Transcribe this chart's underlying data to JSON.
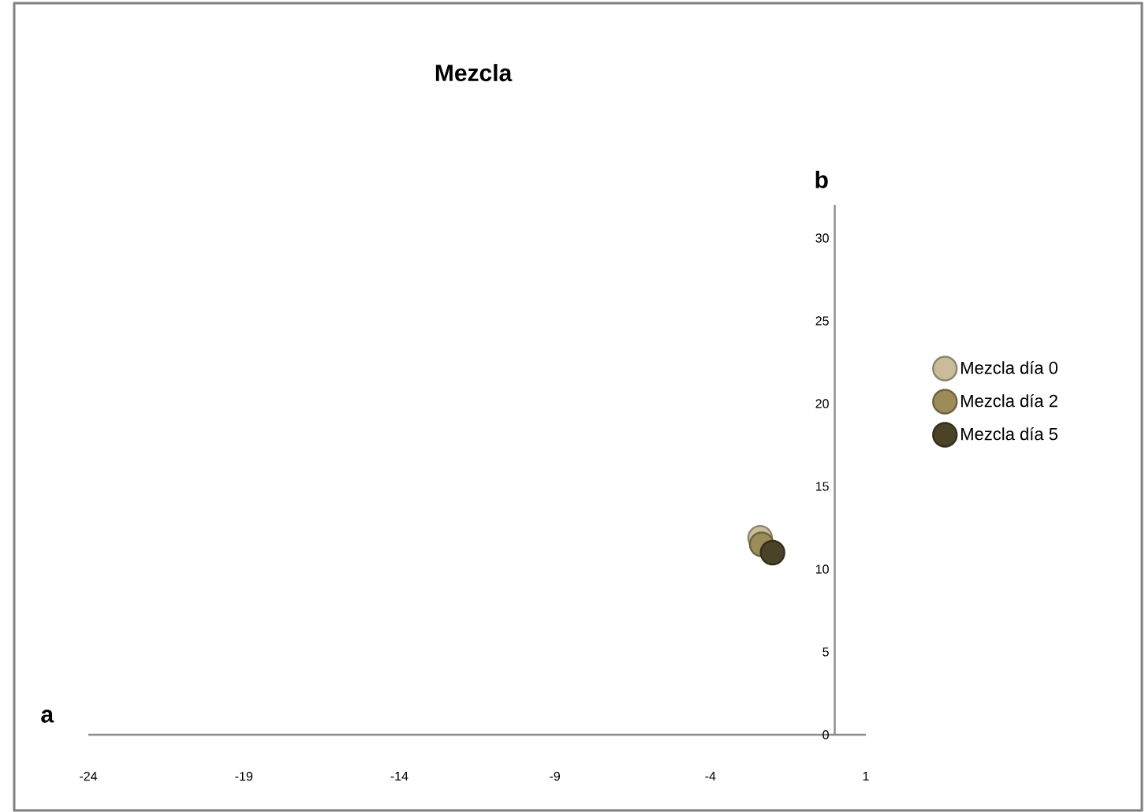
{
  "chart_data": {
    "type": "scatter",
    "title": "Mezcla",
    "xlabel": "a",
    "ylabel": "b",
    "xlim": [
      -24,
      1
    ],
    "ylim": [
      0,
      32
    ],
    "xticks": [
      -24,
      -19,
      -14,
      -9,
      -4,
      1
    ],
    "yticks": [
      0,
      5,
      10,
      15,
      20,
      25,
      30
    ],
    "legend": "right",
    "grid": false,
    "series": [
      {
        "name": "Mezcla día 0",
        "color": "#c8bc9a",
        "x": [
          -2.4
        ],
        "values": [
          11.9
        ]
      },
      {
        "name": "Mezcla día 2",
        "color": "#9c8c5a",
        "x": [
          -2.35
        ],
        "values": [
          11.5
        ]
      },
      {
        "name": "Mezcla día 5",
        "color": "#4a4328",
        "x": [
          -2.0
        ],
        "values": [
          11.0
        ]
      }
    ]
  }
}
